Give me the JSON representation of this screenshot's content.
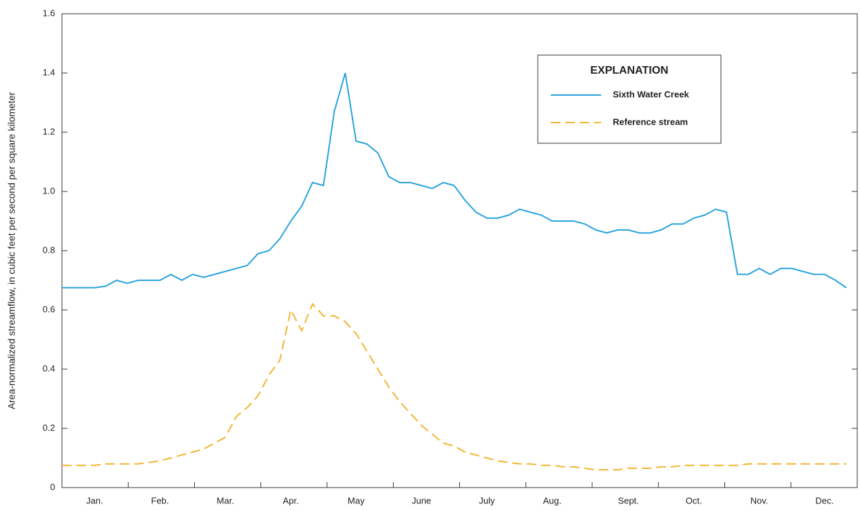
{
  "chart_data": {
    "type": "line",
    "y_label": "Area-normalized streamflow, in cubic feet per second per square kilometer",
    "legend_title": "EXPLANATION",
    "categories": [
      null,
      null,
      null,
      "Jan.",
      null,
      null,
      null,
      null,
      null,
      "Feb.",
      null,
      null,
      null,
      null,
      null,
      "Mar.",
      null,
      null,
      null,
      null,
      null,
      "Apr.",
      null,
      null,
      null,
      null,
      null,
      "May",
      null,
      null,
      null,
      null,
      null,
      "June",
      null,
      null,
      null,
      null,
      null,
      "July",
      null,
      null,
      null,
      null,
      null,
      "Aug.",
      null,
      null,
      null,
      null,
      null,
      null,
      "Sept.",
      null,
      null,
      null,
      null,
      null,
      "Oct.",
      null,
      null,
      null,
      null,
      null,
      "Nov.",
      null,
      null,
      null,
      null,
      null,
      "Dec.",
      null,
      null
    ],
    "series": [
      {
        "name": "Sixth Water Creek",
        "color": "#29a3dc",
        "dash": "solid",
        "values": [
          0.675,
          0.675,
          0.675,
          0.675,
          0.68,
          0.7,
          0.69,
          0.7,
          0.7,
          0.7,
          0.72,
          0.7,
          0.72,
          0.71,
          0.72,
          0.73,
          0.74,
          0.75,
          0.79,
          0.8,
          0.84,
          0.9,
          0.95,
          1.03,
          1.02,
          1.27,
          1.4,
          1.17,
          1.16,
          1.13,
          1.05,
          1.03,
          1.03,
          1.02,
          1.01,
          1.03,
          1.02,
          0.97,
          0.93,
          0.91,
          0.91,
          0.92,
          0.94,
          0.93,
          0.92,
          0.9,
          0.9,
          0.9,
          0.89,
          0.87,
          0.86,
          0.87,
          0.87,
          0.86,
          0.86,
          0.87,
          0.89,
          0.89,
          0.91,
          0.92,
          0.94,
          0.93,
          0.72,
          0.72,
          0.74,
          0.72,
          0.74,
          0.74,
          0.73,
          0.72,
          0.72,
          0.7,
          0.675
        ]
      },
      {
        "name": "Reference stream",
        "color": "#f2b531",
        "dash": "dashed",
        "values": [
          0.075,
          0.075,
          0.075,
          0.075,
          0.08,
          0.08,
          0.08,
          0.08,
          0.085,
          0.09,
          0.1,
          0.11,
          0.12,
          0.13,
          0.15,
          0.17,
          0.24,
          0.27,
          0.31,
          0.38,
          0.43,
          0.6,
          0.53,
          0.62,
          0.58,
          0.58,
          0.56,
          0.52,
          0.46,
          0.4,
          0.34,
          0.29,
          0.25,
          0.21,
          0.18,
          0.15,
          0.14,
          0.12,
          0.11,
          0.1,
          0.09,
          0.085,
          0.08,
          0.08,
          0.075,
          0.075,
          0.07,
          0.07,
          0.065,
          0.06,
          0.06,
          0.06,
          0.065,
          0.065,
          0.065,
          0.07,
          0.07,
          0.075,
          0.075,
          0.075,
          0.075,
          0.075,
          0.075,
          0.08,
          0.08,
          0.08,
          0.08,
          0.08,
          0.08,
          0.08,
          0.08,
          0.08,
          0.08
        ]
      }
    ],
    "ylim": [
      0,
      1.6
    ],
    "yticks": [
      0,
      0.2,
      0.4,
      0.6,
      0.8,
      {
        "value": 1,
        "label": "1.0"
      },
      1.2,
      1.4,
      1.6
    ],
    "grid": false
  }
}
